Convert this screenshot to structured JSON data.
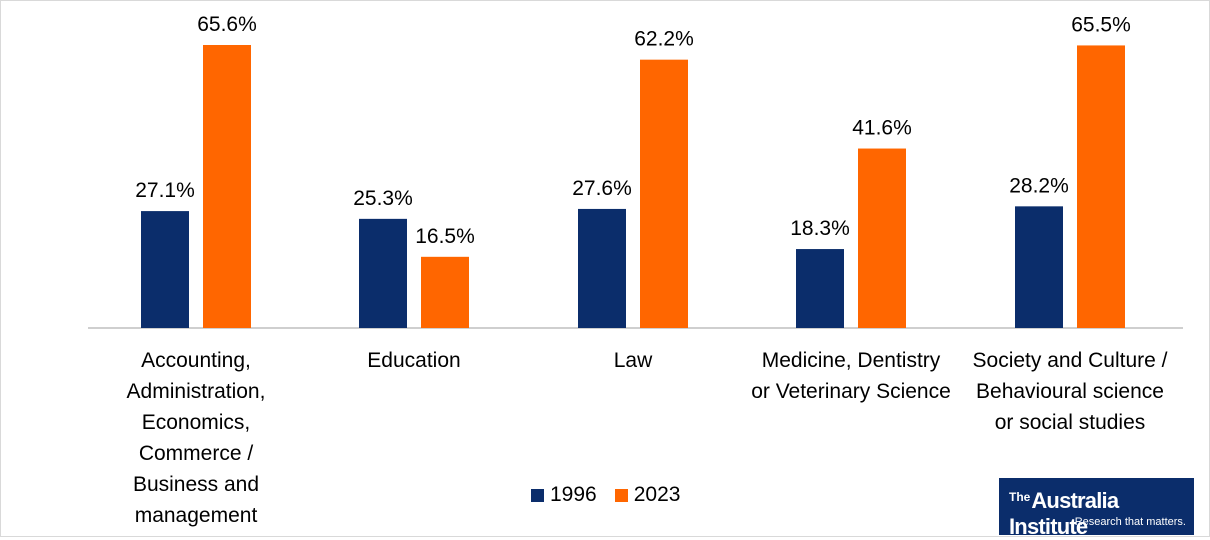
{
  "chart_data": {
    "type": "bar",
    "categories": [
      "Accounting,\nAdministration,\nEconomics,\nCommerce /\nBusiness and\nmanagement",
      "Education",
      "Law",
      "Medicine, Dentistry\nor Veterinary Science",
      "Society and Culture /\nBehavioural science\nor social studies"
    ],
    "series": [
      {
        "name": "1996",
        "values": [
          27.1,
          25.3,
          27.6,
          18.3,
          28.2
        ],
        "labels": [
          "27.1%",
          "25.3%",
          "27.6%",
          "18.3%",
          "28.2%"
        ],
        "color": "#0b2d6b"
      },
      {
        "name": "2023",
        "values": [
          65.6,
          16.5,
          62.2,
          41.6,
          65.5
        ],
        "labels": [
          "65.6%",
          "16.5%",
          "62.2%",
          "41.6%",
          "65.5%"
        ],
        "color": "#ff6600"
      }
    ],
    "ylim": [
      0,
      70
    ],
    "grid": false,
    "legend_position": "bottom"
  },
  "logo": {
    "the": "The",
    "name": "Australia Institute",
    "tagline": "Research that matters."
  }
}
